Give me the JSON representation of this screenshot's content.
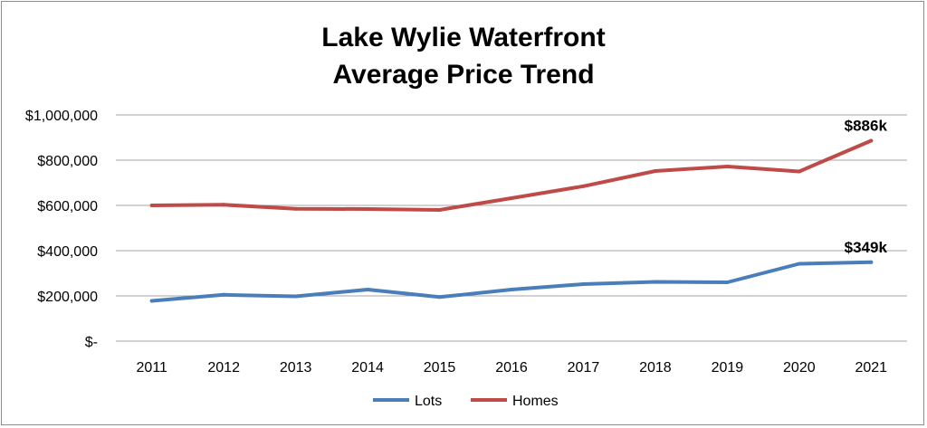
{
  "chart_data": {
    "type": "line",
    "title_lines": [
      "Lake Wylie Waterfront",
      "Average Price Trend"
    ],
    "categories": [
      "2011",
      "2012",
      "2013",
      "2014",
      "2015",
      "2016",
      "2017",
      "2018",
      "2019",
      "2020",
      "2021"
    ],
    "series": [
      {
        "name": "Lots",
        "color": "#4a7ebb",
        "values": [
          178000,
          205000,
          198000,
          228000,
          195000,
          228000,
          252000,
          262000,
          260000,
          342000,
          349000
        ],
        "end_label": "$349k"
      },
      {
        "name": "Homes",
        "color": "#be4b48",
        "values": [
          600000,
          603000,
          585000,
          584000,
          580000,
          632000,
          685000,
          752000,
          772000,
          750000,
          886000
        ],
        "end_label": "$886k"
      }
    ],
    "ylim": [
      0,
      1000000
    ],
    "yticks": [
      {
        "value": 0,
        "label": "$-"
      },
      {
        "value": 200000,
        "label": "$200,000"
      },
      {
        "value": 400000,
        "label": "$400,000"
      },
      {
        "value": 600000,
        "label": "$600,000"
      },
      {
        "value": 800000,
        "label": "$800,000"
      },
      {
        "value": 1000000,
        "label": "$1,000,000"
      }
    ],
    "grid": true,
    "legend_position": "bottom-center"
  }
}
